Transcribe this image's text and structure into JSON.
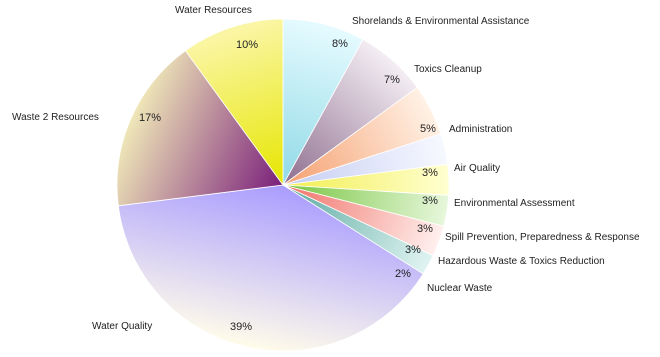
{
  "chart_data": {
    "type": "pie",
    "start_angle_deg": -90,
    "direction": "clockwise",
    "legend": "none",
    "slices": [
      {
        "label": "Shorelands & Environmental Assistance",
        "value": 8,
        "value_label": "8%",
        "color_light": "#e6fbff",
        "color_dark": "#8fd9e6"
      },
      {
        "label": "Toxics Cleanup",
        "value": 7,
        "value_label": "7%",
        "color_light": "#f4eef4",
        "color_dark": "#8f6f8f"
      },
      {
        "label": "Administration",
        "value": 5,
        "value_label": "5%",
        "color_light": "#fff2e6",
        "color_dark": "#f59f6f"
      },
      {
        "label": "Air Quality",
        "value": 3,
        "value_label": "3%",
        "color_light": "#f7f9ff",
        "color_dark": "#c5ccf2"
      },
      {
        "label": "Environmental Assessment",
        "value": 3,
        "value_label": "3%",
        "color_light": "#ffffd1",
        "color_dark": "#f2ee4f"
      },
      {
        "label": "Spill Prevention, Preparedness & Response",
        "value": 3,
        "value_label": "3%",
        "color_light": "#e7f7dc",
        "color_dark": "#77c53f"
      },
      {
        "label": "Hazardous Waste & Toxics Reduction",
        "value": 3,
        "value_label": "3%",
        "color_light": "#fff0ee",
        "color_dark": "#f06f66"
      },
      {
        "label": "Nuclear Waste",
        "value": 2,
        "value_label": "2%",
        "color_light": "#e0f4f2",
        "color_dark": "#5aa8a0"
      },
      {
        "label": "Water Quality",
        "value": 39,
        "value_label": "39%",
        "color_light": "#fffcea",
        "color_dark": "#a99cff"
      },
      {
        "label": "Waste 2 Resources",
        "value": 17,
        "value_label": "17%",
        "color_light": "#efe7b8",
        "color_dark": "#7a1f7a"
      },
      {
        "label": "Water Resources",
        "value": 10,
        "value_label": "10%",
        "color_light": "#fbf6a8",
        "color_dark": "#e6e600"
      }
    ]
  }
}
